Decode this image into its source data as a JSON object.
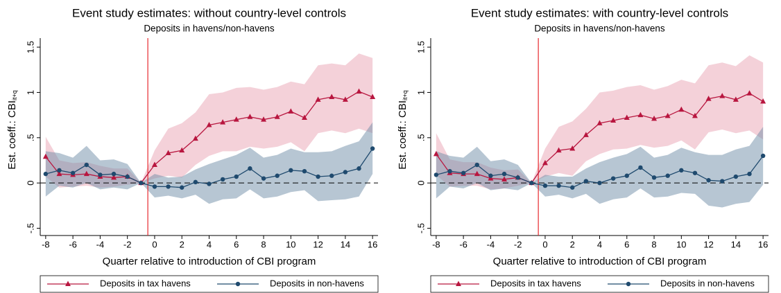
{
  "chart_data": [
    {
      "type": "line",
      "title": "Event study estimates: without country-level controls",
      "subtitle": "Deposits in havens/non-havens",
      "x_label": "Quarter relative to introduction of CBI program",
      "y_label": "Est. coeff.: CBI",
      "y_label_subscript": "it+q",
      "x": [
        -8,
        -7,
        -6,
        -5,
        -4,
        -3,
        -2,
        -1,
        0,
        1,
        2,
        3,
        4,
        5,
        6,
        7,
        8,
        9,
        10,
        11,
        12,
        13,
        14,
        15,
        16
      ],
      "xlim": [
        -8.4,
        16.4
      ],
      "xticks": [
        -8,
        -6,
        -4,
        -2,
        0,
        2,
        4,
        6,
        8,
        10,
        12,
        14,
        16
      ],
      "ylim": [
        -0.58,
        1.6
      ],
      "yticks": [
        {
          "value": -0.5,
          "label": "-.5"
        },
        0,
        {
          "value": 0.5,
          "label": ".5"
        },
        1,
        {
          "value": 1.5,
          "label": "1.5"
        }
      ],
      "event_line": -0.5,
      "event_line_color": "#e8292e",
      "zero_line": 0,
      "series": [
        {
          "name": "Deposits in tax havens",
          "color": "#b8163f",
          "band_color": "#e9a3b3",
          "marker": "triangle",
          "values": [
            0.29,
            0.1,
            0.09,
            0.1,
            0.07,
            0.06,
            0.07,
            0,
            0.2,
            0.33,
            0.36,
            0.49,
            0.64,
            0.67,
            0.7,
            0.73,
            0.7,
            0.73,
            0.79,
            0.72,
            0.92,
            0.95,
            0.92,
            1.01,
            0.95
          ],
          "lower": [
            0.07,
            -0.05,
            -0.04,
            -0.03,
            -0.05,
            -0.04,
            -0.02,
            0,
            0.05,
            0.08,
            0.06,
            0.2,
            0.3,
            0.35,
            0.35,
            0.4,
            0.38,
            0.4,
            0.45,
            0.35,
            0.55,
            0.58,
            0.55,
            0.6,
            0.55
          ],
          "upper": [
            0.51,
            0.25,
            0.22,
            0.23,
            0.19,
            0.16,
            0.16,
            0,
            0.36,
            0.6,
            0.66,
            0.78,
            0.98,
            1.0,
            1.05,
            1.06,
            1.03,
            1.06,
            1.12,
            1.09,
            1.3,
            1.32,
            1.3,
            1.43,
            1.38
          ]
        },
        {
          "name": "Deposits in non-havens",
          "color": "#1f4a6e",
          "band_color": "#6f8ea8",
          "marker": "circle",
          "values": [
            0.1,
            0.14,
            0.11,
            0.2,
            0.09,
            0.1,
            0.07,
            0,
            -0.04,
            -0.04,
            -0.05,
            0.01,
            -0.01,
            0.04,
            0.07,
            0.16,
            0.05,
            0.08,
            0.14,
            0.13,
            0.07,
            0.08,
            0.12,
            0.16,
            0.38
          ],
          "lower": [
            -0.15,
            -0.03,
            -0.05,
            0.0,
            -0.07,
            -0.05,
            -0.07,
            0,
            -0.16,
            -0.14,
            -0.17,
            -0.13,
            -0.23,
            -0.18,
            -0.17,
            -0.07,
            -0.17,
            -0.15,
            -0.1,
            -0.08,
            -0.2,
            -0.19,
            -0.18,
            -0.15,
            0.1
          ],
          "upper": [
            0.35,
            0.33,
            0.28,
            0.41,
            0.25,
            0.26,
            0.21,
            0,
            0.1,
            0.06,
            0.07,
            0.15,
            0.21,
            0.26,
            0.31,
            0.39,
            0.28,
            0.31,
            0.38,
            0.34,
            0.34,
            0.35,
            0.41,
            0.46,
            0.67
          ]
        }
      ]
    },
    {
      "type": "line",
      "title": "Event study estimates: with country-level controls",
      "subtitle": "Deposits in havens/non-havens",
      "x_label": "Quarter relative to introduction of CBI program",
      "y_label": "Est. coeff.: CBI",
      "y_label_subscript": "it+q",
      "x": [
        -8,
        -7,
        -6,
        -5,
        -4,
        -3,
        -2,
        -1,
        0,
        1,
        2,
        3,
        4,
        5,
        6,
        7,
        8,
        9,
        10,
        11,
        12,
        13,
        14,
        15,
        16
      ],
      "xlim": [
        -8.4,
        16.4
      ],
      "xticks": [
        -8,
        -6,
        -4,
        -2,
        0,
        2,
        4,
        6,
        8,
        10,
        12,
        14,
        16
      ],
      "ylim": [
        -0.58,
        1.6
      ],
      "yticks": [
        {
          "value": -0.5,
          "label": "-.5"
        },
        0,
        {
          "value": 0.5,
          "label": ".5"
        },
        1,
        {
          "value": 1.5,
          "label": "1.5"
        }
      ],
      "event_line": -0.5,
      "event_line_color": "#e8292e",
      "zero_line": 0,
      "series": [
        {
          "name": "Deposits in tax havens",
          "color": "#b8163f",
          "band_color": "#e9a3b3",
          "marker": "triangle",
          "values": [
            0.32,
            0.11,
            0.1,
            0.1,
            0.05,
            0.04,
            0.06,
            0,
            0.22,
            0.36,
            0.38,
            0.53,
            0.66,
            0.69,
            0.72,
            0.75,
            0.71,
            0.74,
            0.81,
            0.74,
            0.93,
            0.96,
            0.92,
            0.99,
            0.9
          ],
          "lower": [
            0.09,
            -0.04,
            -0.03,
            -0.03,
            -0.07,
            -0.06,
            -0.03,
            0,
            0.07,
            0.11,
            0.08,
            0.24,
            0.32,
            0.37,
            0.38,
            0.42,
            0.39,
            0.41,
            0.47,
            0.37,
            0.56,
            0.59,
            0.55,
            0.58,
            0.48
          ],
          "upper": [
            0.55,
            0.26,
            0.23,
            0.23,
            0.17,
            0.14,
            0.15,
            0,
            0.38,
            0.62,
            0.68,
            0.82,
            1.0,
            1.02,
            1.06,
            1.08,
            1.03,
            1.07,
            1.14,
            1.1,
            1.3,
            1.33,
            1.29,
            1.41,
            1.33
          ]
        },
        {
          "name": "Deposits in non-havens",
          "color": "#1f4a6e",
          "band_color": "#6f8ea8",
          "marker": "circle",
          "values": [
            0.09,
            0.13,
            0.11,
            0.2,
            0.08,
            0.1,
            0.06,
            0,
            -0.03,
            -0.03,
            -0.05,
            0.02,
            0.0,
            0.05,
            0.08,
            0.17,
            0.06,
            0.08,
            0.14,
            0.11,
            0.03,
            0.02,
            0.07,
            0.1,
            0.3
          ],
          "lower": [
            -0.17,
            -0.04,
            -0.06,
            0.0,
            -0.08,
            -0.06,
            -0.08,
            0,
            -0.15,
            -0.13,
            -0.17,
            -0.12,
            -0.23,
            -0.18,
            -0.16,
            -0.06,
            -0.16,
            -0.15,
            -0.11,
            -0.12,
            -0.25,
            -0.27,
            -0.23,
            -0.21,
            -0.02
          ],
          "upper": [
            0.35,
            0.3,
            0.28,
            0.4,
            0.24,
            0.26,
            0.2,
            0,
            0.09,
            0.07,
            0.07,
            0.16,
            0.23,
            0.28,
            0.32,
            0.4,
            0.28,
            0.31,
            0.39,
            0.34,
            0.31,
            0.31,
            0.37,
            0.41,
            0.62
          ]
        }
      ]
    }
  ]
}
